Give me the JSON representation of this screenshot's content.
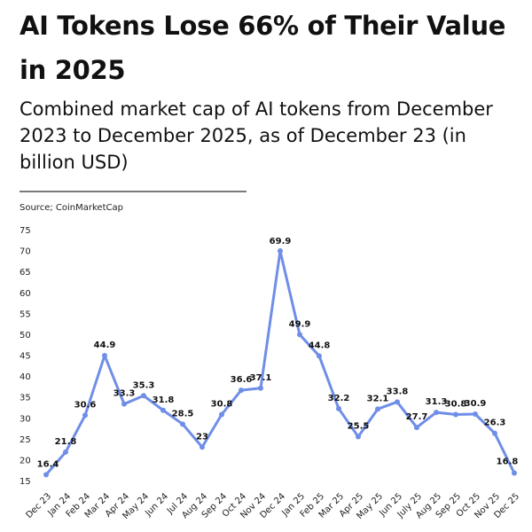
{
  "header": {
    "title": "AI Tokens Lose 66% of Their Value in 2025",
    "subtitle": "Combined market cap of AI tokens from December 2023 to December 2025, as of December 23 (in billion USD)",
    "source": "Source; CoinMarketCap"
  },
  "colors": {
    "line": "#6f8ee8",
    "text": "#111111",
    "divider": "#7a7a7a"
  },
  "chart_data": {
    "type": "line",
    "title": "AI Tokens Lose 66% of Their Value in 2025",
    "xlabel": "",
    "ylabel": "",
    "ylim": [
      15,
      75
    ],
    "yticks": [
      15,
      20,
      25,
      30,
      35,
      40,
      45,
      50,
      55,
      60,
      65,
      70,
      75
    ],
    "grid": false,
    "categories": [
      "Dec 23",
      "Jan 24",
      "Feb 24",
      "Mar 24",
      "Apr 24",
      "May 24",
      "Jun 24",
      "Jul 24",
      "Aug 24",
      "Sep 24",
      "Oct 24",
      "Nov 24",
      "Dec 24",
      "Jan 25",
      "Feb 25",
      "Mar 25",
      "Apr 25",
      "May 25",
      "Jun 25",
      "July 25",
      "Aug 25",
      "Sep 25",
      "Oct 25",
      "Nov 25",
      "Dec 25"
    ],
    "series": [
      {
        "name": "Combined market cap (billion USD)",
        "values": [
          16.4,
          21.8,
          30.6,
          44.9,
          33.3,
          35.3,
          31.8,
          28.5,
          23,
          30.8,
          36.6,
          37.1,
          69.9,
          49.9,
          44.8,
          32.2,
          25.5,
          32.1,
          33.8,
          27.7,
          31.3,
          30.8,
          30.9,
          26.3,
          16.8
        ],
        "labels": [
          "16.4",
          "21.8",
          "30.6",
          "44.9",
          "33.3",
          "35.3",
          "31.8",
          "28.5",
          "23",
          "30.8",
          "36.6",
          "37.1",
          "69.9",
          "49.9",
          "44.8",
          "32.2",
          "25.5",
          "32.1",
          "33.8",
          "27.7",
          "31.3",
          "30.8",
          "30.9",
          "26.3",
          "16.8"
        ]
      }
    ]
  }
}
